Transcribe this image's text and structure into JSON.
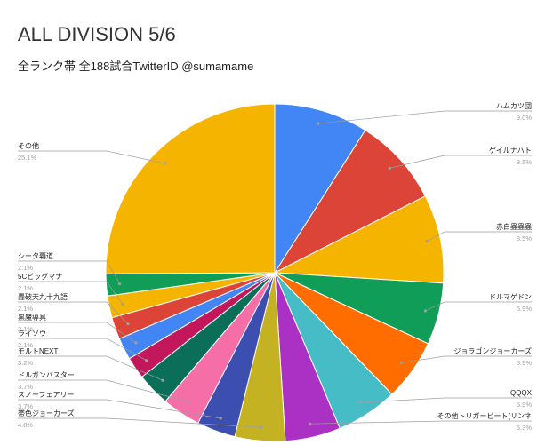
{
  "chart_data": {
    "type": "pie",
    "title": "ALL DIVISION 5/6",
    "subtitle": "全ランク帯 全188試合TwitterID @sumamame",
    "slices": [
      {
        "name": "ハムカツ団",
        "value": 9.0,
        "label": "9.0%",
        "color": "#4285f4",
        "side": "right"
      },
      {
        "name": "ゲイルナハト",
        "value": 8.5,
        "label": "8.5%",
        "color": "#db4437",
        "side": "right"
      },
      {
        "name": "赤白蟲蟲蟲",
        "value": 8.5,
        "label": "8.5%",
        "color": "#f4b400",
        "side": "right"
      },
      {
        "name": "ドルマゲドン",
        "value": 5.9,
        "label": "5.9%",
        "color": "#0f9d58",
        "side": "right"
      },
      {
        "name": "ジョラゴンジョーカーズ",
        "value": 5.9,
        "label": "5.9%",
        "color": "#ff6d01",
        "side": "right"
      },
      {
        "name": "QQQX",
        "value": 5.9,
        "label": "5.9%",
        "color": "#46bdc6",
        "side": "right"
      },
      {
        "name": "その他トリガービート(リンネ",
        "value": 5.3,
        "label": "5.3%",
        "color": "#ab30c4",
        "side": "right"
      },
      {
        "name": "帯色ジョーカーズ",
        "value": 4.8,
        "label": "4.8%",
        "color": "#c5b223",
        "side": "left"
      },
      {
        "name": "スノーフェアリー",
        "value": 3.7,
        "label": "3.7%",
        "color": "#3c4eb0",
        "side": "left"
      },
      {
        "name": "ドルガンバスター",
        "value": 3.7,
        "label": "3.7%",
        "color": "#f56ea8",
        "side": "left"
      },
      {
        "name": "モルトNEXT",
        "value": 3.2,
        "label": "3.2%",
        "color": "#0b6e58",
        "side": "left"
      },
      {
        "name": "ライソウ",
        "value": 2.1,
        "label": "2.1%",
        "color": "#c2185b",
        "side": "left"
      },
      {
        "name": "黒魔導具",
        "value": 2.1,
        "label": "2.1%",
        "color": "#4285f4",
        "side": "left"
      },
      {
        "name": "轟破天九十九語",
        "value": 2.1,
        "label": "2.1%",
        "color": "#db4437",
        "side": "left"
      },
      {
        "name": "5Cビッグマナ",
        "value": 2.1,
        "label": "2.1%",
        "color": "#f4b400",
        "side": "left"
      },
      {
        "name": "シータ覇道",
        "value": 2.1,
        "label": "2.1%",
        "color": "#0f9d58",
        "side": "left"
      },
      {
        "name": "その他",
        "value": 25.1,
        "label": "25.1%",
        "color": "#f4b400",
        "side": "left"
      }
    ],
    "legend": "none"
  }
}
